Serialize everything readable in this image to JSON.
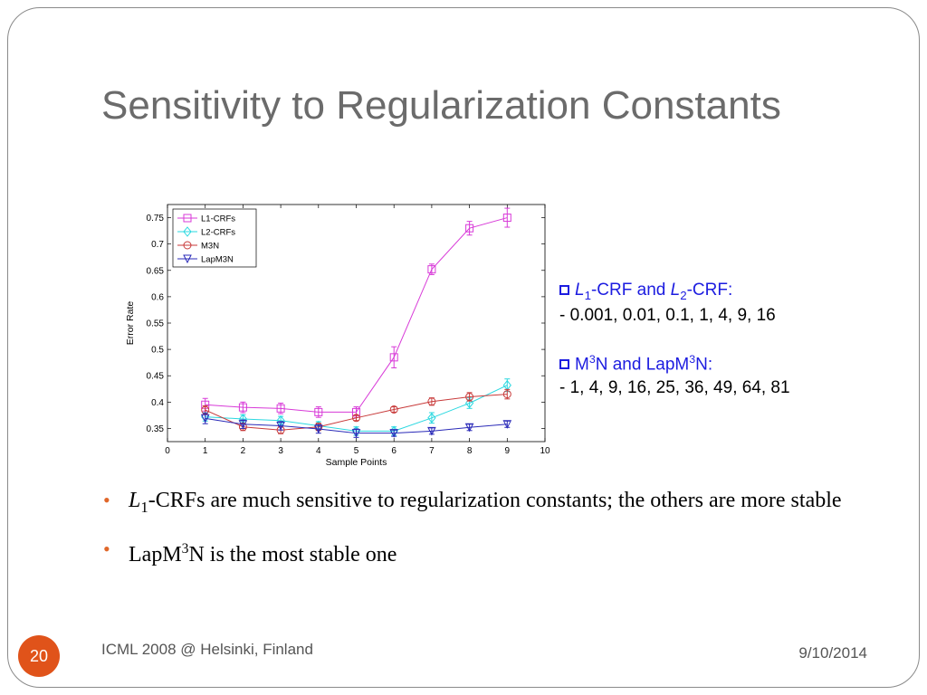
{
  "slide": {
    "title": "Sensitivity to Regularization Constants",
    "number": "20",
    "footer": "ICML 2008 @ Helsinki, Finland",
    "date": "9/10/2014"
  },
  "params": {
    "group1_head_prefix": "L",
    "group1_head_sub1": "1",
    "group1_head_mid": "-CRF and ",
    "group1_head_l2": "L",
    "group1_head_sub2": "2",
    "group1_head_suffix": "-CRF:",
    "group1_values": "-   0.001, 0.01, 0.1, 1, 4, 9, 16",
    "group2_head_a": "M",
    "group2_head_sup1": "3",
    "group2_head_b": "N and LapM",
    "group2_head_sup2": "3",
    "group2_head_c": "N:",
    "group2_values": "-  1, 4, 9, 16, 25, 36, 49, 64, 81"
  },
  "bullets": {
    "b1_l": "L",
    "b1_sub": "1",
    "b1_text": "-CRFs are much sensitive to regularization constants; the others are more stable",
    "b2_a": "LapM",
    "b2_sup": "3",
    "b2_b": "N is the most stable one"
  },
  "chart_data": {
    "type": "line",
    "xlabel": "Sample Points",
    "ylabel": "Error Rate",
    "xlim": [
      0,
      10
    ],
    "ylim": [
      0.325,
      0.775
    ],
    "xticks": [
      "0",
      "1",
      "2",
      "3",
      "4",
      "5",
      "6",
      "7",
      "8",
      "9",
      "10"
    ],
    "yticks": [
      "0.35",
      "0.4",
      "0.45",
      "0.5",
      "0.55",
      "0.6",
      "0.65",
      "0.7",
      "0.75"
    ],
    "legend_position": "top-left",
    "x": [
      1,
      2,
      3,
      4,
      5,
      6,
      7,
      8,
      9
    ],
    "series": [
      {
        "name": "L1-CRFs",
        "color": "#d83ad8",
        "marker": "square",
        "values": [
          0.395,
          0.39,
          0.388,
          0.381,
          0.381,
          0.485,
          0.652,
          0.73,
          0.75
        ],
        "errors": [
          0.012,
          0.01,
          0.01,
          0.01,
          0.01,
          0.02,
          0.01,
          0.013,
          0.018
        ]
      },
      {
        "name": "L2-CRFs",
        "color": "#2ad8e0",
        "marker": "diamond",
        "values": [
          0.372,
          0.368,
          0.365,
          0.355,
          0.345,
          0.345,
          0.37,
          0.398,
          0.432
        ],
        "errors": [
          0.008,
          0.008,
          0.008,
          0.008,
          0.008,
          0.008,
          0.01,
          0.01,
          0.012
        ]
      },
      {
        "name": "M3N",
        "color": "#c83a3a",
        "marker": "circle",
        "values": [
          0.385,
          0.353,
          0.347,
          0.353,
          0.37,
          0.386,
          0.401,
          0.41,
          0.415
        ],
        "errors": [
          0.008,
          0.007,
          0.007,
          0.007,
          0.005,
          0.005,
          0.007,
          0.008,
          0.009
        ]
      },
      {
        "name": "LapM3N",
        "color": "#2a2ab8",
        "marker": "triangle-down",
        "values": [
          0.369,
          0.358,
          0.355,
          0.349,
          0.341,
          0.341,
          0.345,
          0.352,
          0.358
        ],
        "errors": [
          0.01,
          0.008,
          0.008,
          0.008,
          0.008,
          0.006,
          0.006,
          0.006,
          0.006
        ]
      }
    ]
  }
}
